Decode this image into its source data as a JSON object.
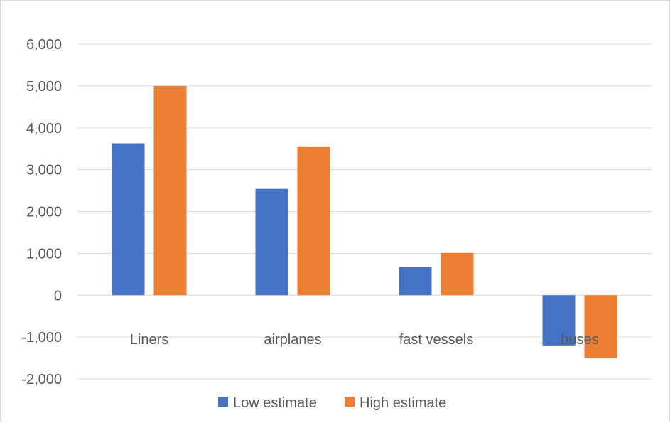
{
  "chart_data": {
    "type": "bar",
    "title": "",
    "xlabel": "",
    "ylabel": "",
    "categories": [
      "Liners",
      "airplanes",
      "fast vessels",
      "buses"
    ],
    "series": [
      {
        "name": "Low estimate",
        "color": "#4472c4",
        "values": [
          3630,
          2540,
          670,
          -1200
        ]
      },
      {
        "name": "High estimate",
        "color": "#ed7d31",
        "values": [
          5000,
          3540,
          1010,
          -1510
        ]
      }
    ],
    "ylim": [
      -2000,
      6000
    ],
    "y_ticks": [
      "-2,000",
      "-1,000",
      "0",
      "1,000",
      "2,000",
      "3,000",
      "4,000",
      "5,000",
      "6,000"
    ],
    "grid": true,
    "legend_position": "bottom",
    "colors": {
      "gridline": "#d9d9d9",
      "zero_line": "#d9d9d9",
      "text": "#595959"
    }
  }
}
